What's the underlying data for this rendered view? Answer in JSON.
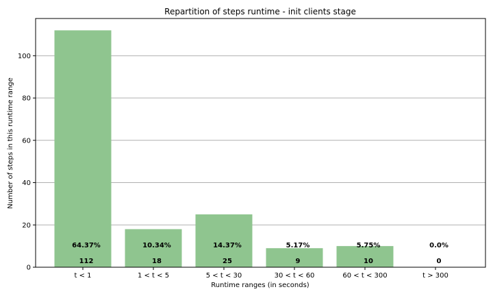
{
  "chart_data": {
    "type": "bar",
    "title": "Repartition of steps runtime - init clients stage",
    "xlabel": "Runtime ranges (in seconds)",
    "ylabel": "Number of steps in this runtime range",
    "categories": [
      "t < 1",
      "1 < t < 5",
      "5 < t < 30",
      "30 < t < 60",
      "60 < t < 300",
      "t > 300"
    ],
    "values": [
      112,
      18,
      25,
      9,
      10,
      0
    ],
    "value_labels": [
      "112",
      "18",
      "25",
      "9",
      "10",
      "0"
    ],
    "percent_labels": [
      "64.37%",
      "10.34%",
      "14.37%",
      "5.17%",
      "5.75%",
      "0.0%"
    ],
    "yticks": [
      "0",
      "20",
      "40",
      "60",
      "80",
      "100"
    ],
    "ylim": [
      0,
      117.6
    ],
    "grid": "y",
    "bar_color": "#8fc58f"
  }
}
